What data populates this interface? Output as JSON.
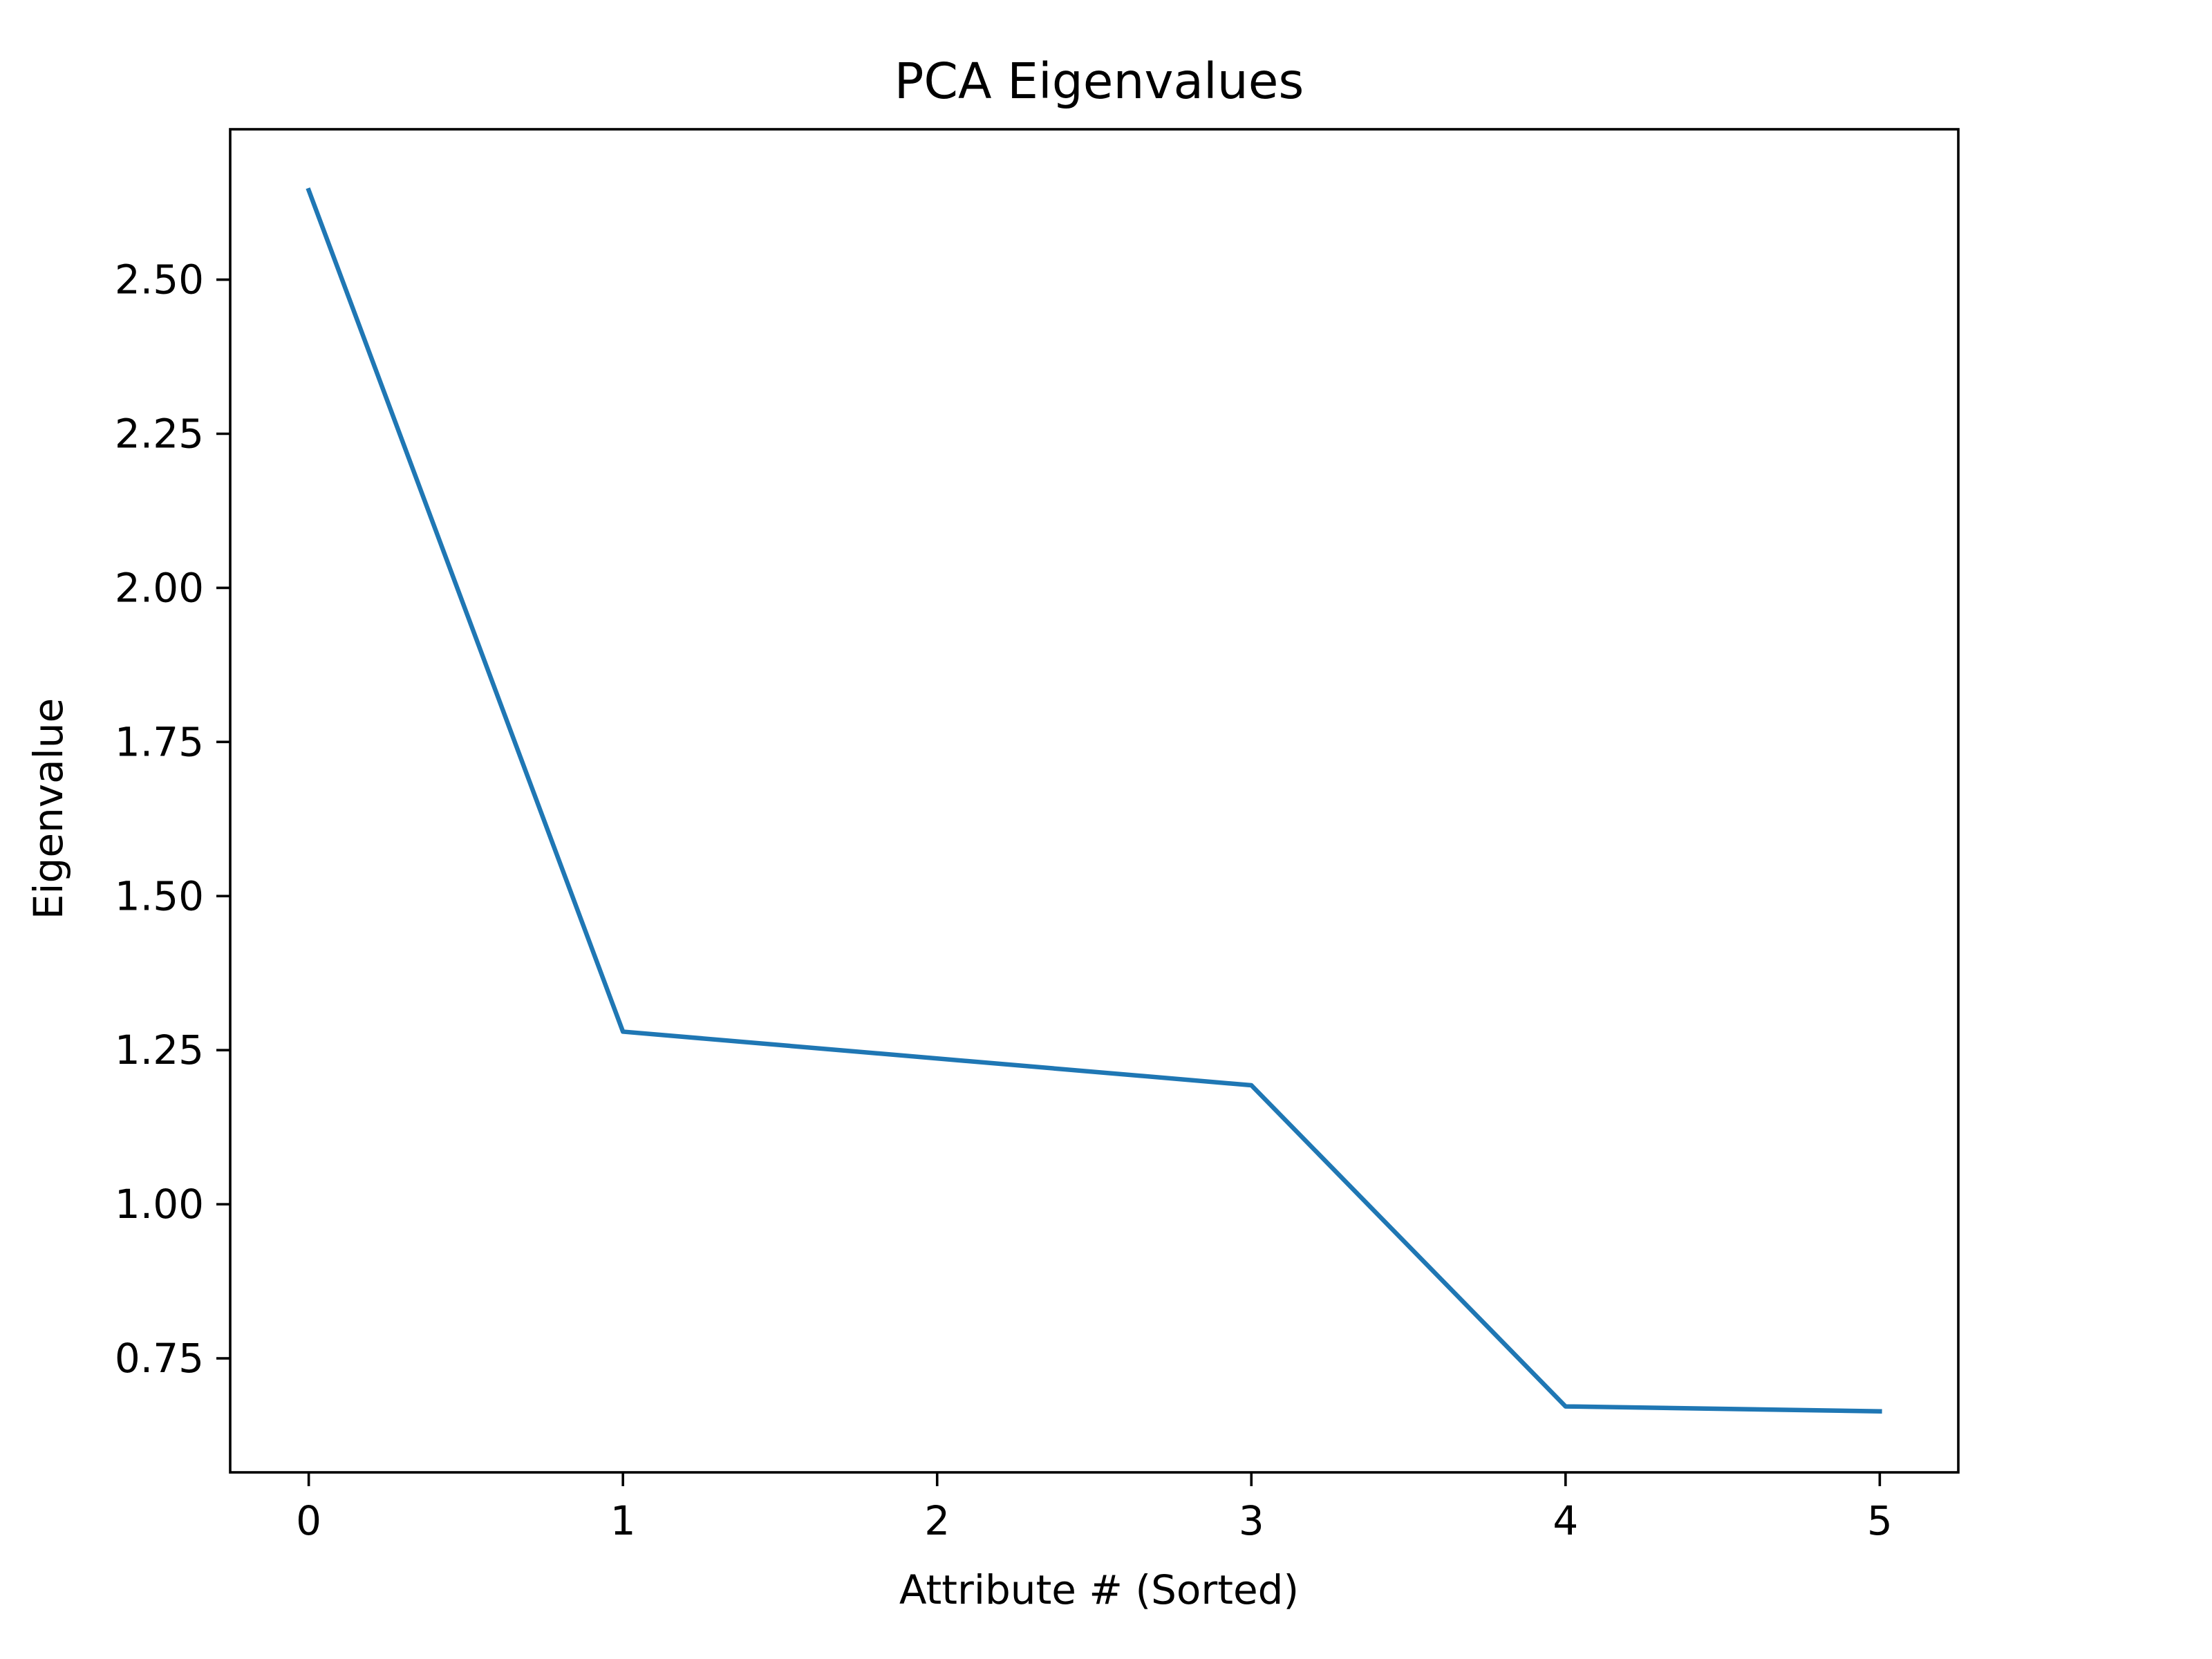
{
  "chart_data": {
    "type": "line",
    "title": "PCA Eigenvalues",
    "xlabel": "Attribute # (Sorted)",
    "ylabel": "Eigenvalue",
    "x": [
      0,
      1,
      2,
      3,
      4,
      5
    ],
    "series": [
      {
        "values": [
          2.645,
          1.28,
          null,
          1.193,
          0.672,
          0.664
        ]
      }
    ],
    "x_ticks": [
      0,
      1,
      2,
      3,
      4,
      5
    ],
    "x_tick_labels": [
      "0",
      "1",
      "2",
      "3",
      "4",
      "5"
    ],
    "y_ticks": [
      0.75,
      1.0,
      1.25,
      1.5,
      1.75,
      2.0,
      2.25,
      2.5
    ],
    "y_tick_labels": [
      "0.75",
      "1.00",
      "1.25",
      "1.50",
      "1.75",
      "2.00",
      "2.25",
      "2.50"
    ],
    "xlim": [
      -0.25,
      5.25
    ],
    "ylim": [
      0.565,
      2.744
    ],
    "grid": false,
    "legend": "none",
    "colors": {
      "series": "#1f77b4",
      "axes": "#000000",
      "background": "#ffffff"
    }
  }
}
